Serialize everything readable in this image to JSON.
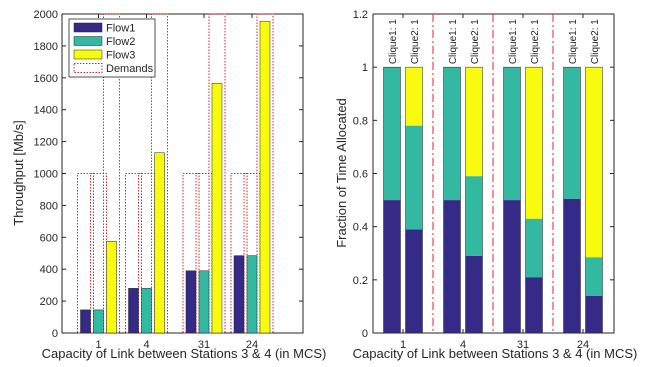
{
  "chart_data": [
    {
      "type": "bar",
      "xlabel": "Capacity of Link between Stations 3 & 4 (in MCS)",
      "ylabel": "Throughput [Mb/s]",
      "ylim": [
        0,
        2000
      ],
      "yticks": [
        0,
        200,
        400,
        600,
        800,
        1000,
        1200,
        1400,
        1600,
        1800,
        2000
      ],
      "grid": false,
      "legend_position": "top-left",
      "categories": [
        "1",
        "4",
        "31",
        "24"
      ],
      "series": [
        {
          "name": "Flow1",
          "color": "#352a87",
          "values": [
            145,
            280,
            390,
            485
          ]
        },
        {
          "name": "Flow2",
          "color": "#33b8a1",
          "values": [
            145,
            280,
            390,
            485
          ]
        },
        {
          "name": "Flow3",
          "color": "#f9fb0e",
          "values": [
            575,
            1130,
            1565,
            1955
          ]
        }
      ],
      "demands": {
        "name": "Demands",
        "style": "dotted-red-outline",
        "values": [
          [
            1000,
            1000,
            2000
          ],
          [
            1000,
            1000,
            2000
          ],
          [
            1000,
            1000,
            2000
          ],
          [
            1000,
            1000,
            2000
          ]
        ]
      },
      "legend": [
        "Flow1",
        "Flow2",
        "Flow3",
        "Demands"
      ]
    },
    {
      "type": "bar",
      "stacked": true,
      "xlabel": "Capacity of Link between Stations 3 & 4 (in MCS)",
      "ylabel": "Fraction of Time Allocated",
      "ylim": [
        0,
        1.2
      ],
      "yticks": [
        "0",
        "0.2",
        "0.4",
        "0.6",
        "0.8",
        "1",
        "1.2"
      ],
      "grid": false,
      "categories": [
        "1",
        "4",
        "31",
        "24"
      ],
      "bar_labels": [
        "Clique1: 1",
        "Clique2: 1"
      ],
      "separator_style": "dash-dot-red",
      "groups": [
        {
          "category": "1",
          "bars": [
            [
              0.5,
              0.5,
              0.0
            ],
            [
              0.39,
              0.39,
              0.22
            ]
          ]
        },
        {
          "category": "4",
          "bars": [
            [
              0.5,
              0.5,
              0.0
            ],
            [
              0.29,
              0.3,
              0.41
            ]
          ]
        },
        {
          "category": "31",
          "bars": [
            [
              0.5,
              0.5,
              0.0
            ],
            [
              0.21,
              0.22,
              0.57
            ]
          ]
        },
        {
          "category": "24",
          "bars": [
            [
              0.505,
              0.495,
              0.0
            ],
            [
              0.14,
              0.145,
              0.715
            ]
          ]
        }
      ],
      "segment_colors": [
        "#352a87",
        "#33b8a1",
        "#f9fb0e"
      ]
    }
  ]
}
